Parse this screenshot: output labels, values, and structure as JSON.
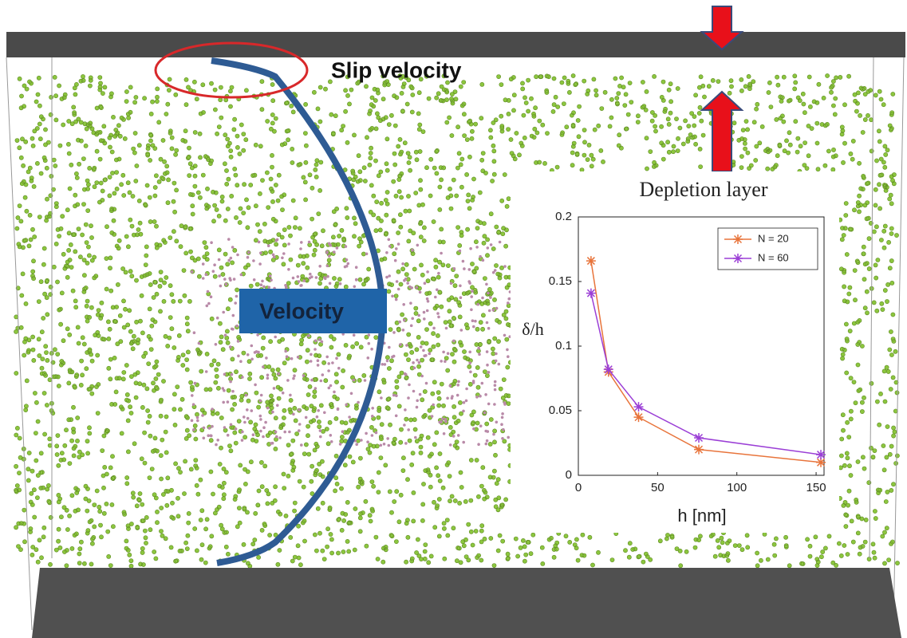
{
  "annotations": {
    "slip": "Slip velocity",
    "velocity": "Velocity"
  },
  "chart_data": {
    "type": "line",
    "title": "Depletion layer",
    "xlabel": "h [nm]",
    "ylabel": "δ/h",
    "x": [
      8,
      19,
      38,
      76,
      153
    ],
    "series": [
      {
        "name": "N = 20",
        "color": "#e8743b",
        "values": [
          0.166,
          0.08,
          0.045,
          0.02,
          0.01
        ]
      },
      {
        "name": "N = 60",
        "color": "#9b3fd6",
        "values": [
          0.141,
          0.082,
          0.053,
          0.029,
          0.016
        ]
      }
    ],
    "xlim": [
      0,
      155
    ],
    "xticks": [
      0,
      50,
      100,
      150
    ],
    "ylim": [
      0,
      0.2
    ],
    "yticks": [
      0,
      0.05,
      0.1,
      0.15,
      0.2
    ],
    "legend": "upper right"
  }
}
